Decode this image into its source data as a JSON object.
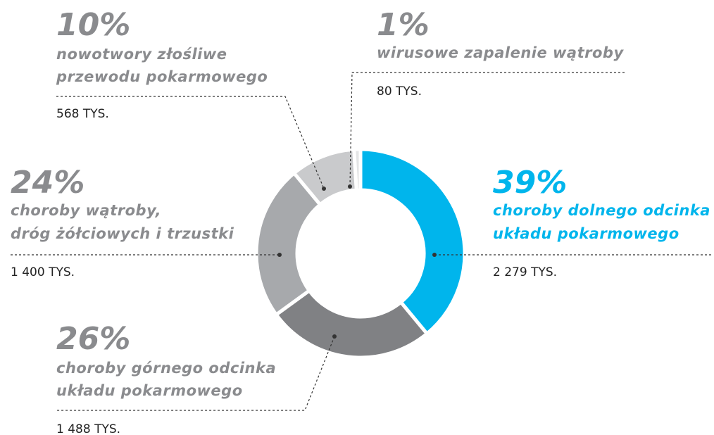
{
  "chart_data": {
    "type": "donut",
    "categories": [
      [
        "choroby dolnego odcinka",
        "układu pokarmowego"
      ],
      [
        "choroby górnego odcinka",
        "układu pokarmowego"
      ],
      [
        "choroby wątroby,",
        "dróg żółciowych i trzustki"
      ],
      [
        "nowotwory złośliwe",
        "przewodu pokarmowego"
      ],
      [
        "wirusowe zapalenie wątroby"
      ]
    ],
    "values": [
      39,
      26,
      24,
      10,
      1
    ],
    "value_labels": [
      "39%",
      "26%",
      "24%",
      "10%",
      "1%"
    ],
    "amount_labels": [
      "2 279 TYS.",
      "1 488 TYS.",
      "1 400 TYS.",
      "568 TYS.",
      "80 TYS."
    ],
    "colors": [
      "#00b5ec",
      "#808184",
      "#a7a9ac",
      "#c9cacc",
      "#e4e5e6"
    ],
    "label_colors": [
      "#00b5ec",
      "#8a8b8e",
      "#8a8b8e",
      "#8a8b8e",
      "#8a8b8e"
    ]
  }
}
